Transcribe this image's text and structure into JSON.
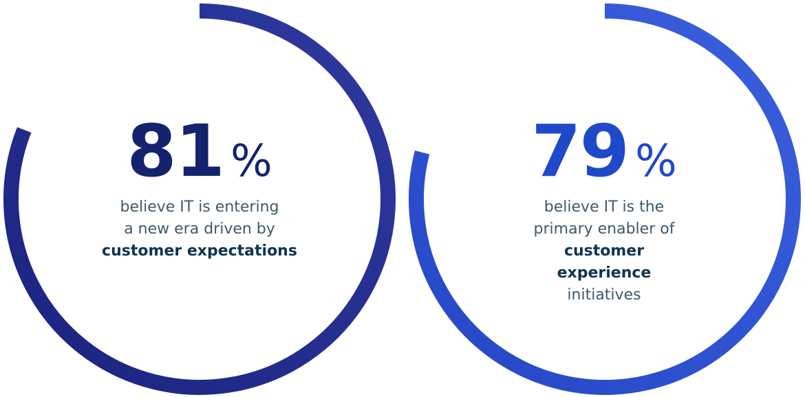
{
  "colors": {
    "ring_left": "#1e2a7a",
    "ring_right": "#2b4fcf",
    "number_left": "#14236e",
    "number_right": "#1f49c8",
    "caption": "#3d5a6a",
    "caption_bold": "#0f3550"
  },
  "chart_data": [
    {
      "type": "pie",
      "style": "progress-ring",
      "value": 81,
      "unit": "%",
      "display_number": "81",
      "display_unit": "%",
      "caption_lines": [
        {
          "text": "believe IT is entering"
        },
        {
          "text": "a new era driven by"
        },
        {
          "bold": "customer expectations"
        }
      ]
    },
    {
      "type": "pie",
      "style": "progress-ring",
      "value": 79,
      "unit": "%",
      "display_number": "79",
      "display_unit": "%",
      "caption_lines": [
        {
          "text": "believe IT is the"
        },
        {
          "text": "primary enabler of ",
          "bold": "customer"
        },
        {
          "bold": "experience",
          "text_after": " initiatives"
        }
      ]
    }
  ]
}
